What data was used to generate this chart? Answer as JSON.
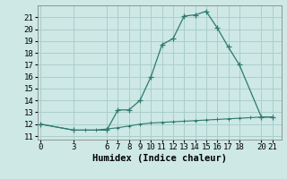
{
  "main_x": [
    0,
    3,
    6,
    7,
    8,
    9,
    10,
    11,
    12,
    13,
    14,
    15,
    16,
    17,
    18,
    20,
    21
  ],
  "main_y": [
    12.0,
    11.5,
    11.5,
    13.2,
    13.2,
    14.0,
    16.0,
    18.7,
    19.2,
    21.1,
    21.2,
    21.5,
    20.1,
    18.5,
    17.0,
    12.6,
    12.6
  ],
  "flat_x": [
    0,
    3,
    4,
    5,
    6,
    7,
    8,
    9,
    10,
    11,
    12,
    13,
    14,
    15,
    16,
    17,
    18,
    19,
    20,
    21
  ],
  "flat_y": [
    12.0,
    11.5,
    11.5,
    11.5,
    11.6,
    11.7,
    11.85,
    12.0,
    12.1,
    12.15,
    12.2,
    12.25,
    12.3,
    12.35,
    12.4,
    12.45,
    12.5,
    12.55,
    12.6,
    12.6
  ],
  "line_color": "#2d7a6e",
  "bg_color": "#cde8e5",
  "grid_color": "#aacfcb",
  "xlabel": "Humidex (Indice chaleur)",
  "xticks": [
    0,
    3,
    6,
    7,
    8,
    9,
    10,
    11,
    12,
    13,
    14,
    15,
    16,
    17,
    18,
    20,
    21
  ],
  "yticks": [
    11,
    12,
    13,
    14,
    15,
    16,
    17,
    18,
    19,
    20,
    21
  ],
  "ylim": [
    10.7,
    22.0
  ],
  "xlim": [
    -0.3,
    21.8
  ],
  "xlabel_fontsize": 7.5,
  "tick_fontsize": 6.5
}
